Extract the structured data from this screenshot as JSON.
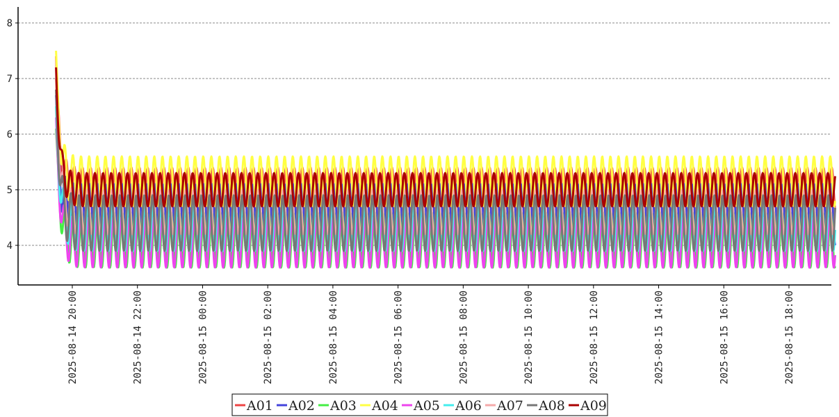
{
  "chart_data": {
    "type": "line",
    "title": "",
    "xlabel": "",
    "ylabel": "",
    "ylim": [
      3.3,
      8.3
    ],
    "yticks": [
      "4",
      "5",
      "6",
      "7",
      "8"
    ],
    "xticks": [
      {
        "t": 1.0,
        "label": "2025-08-14 20:00"
      },
      {
        "t": 3.0,
        "label": "2025-08-14 22:00"
      },
      {
        "t": 5.0,
        "label": "2025-08-15 00:00"
      },
      {
        "t": 7.0,
        "label": "2025-08-15 02:00"
      },
      {
        "t": 9.0,
        "label": "2025-08-15 04:00"
      },
      {
        "t": 11.0,
        "label": "2025-08-15 06:00"
      },
      {
        "t": 13.0,
        "label": "2025-08-15 08:00"
      },
      {
        "t": 15.0,
        "label": "2025-08-15 10:00"
      },
      {
        "t": 17.0,
        "label": "2025-08-15 12:00"
      },
      {
        "t": 19.0,
        "label": "2025-08-15 14:00"
      },
      {
        "t": 21.0,
        "label": "2025-08-15 16:00"
      },
      {
        "t": 23.0,
        "label": "2025-08-15 18:00"
      }
    ],
    "x_start": "2025-08-14 19:30",
    "x_end": "2025-08-15 19:25",
    "grid": "horizontal dashed",
    "legend_position": "bottom-center",
    "oscillation_period_minutes": 15,
    "series": [
      {
        "name": "A01",
        "color": "#ee4444",
        "start": 7.4,
        "low": 4.6,
        "high": 5.4
      },
      {
        "name": "A02",
        "color": "#4444dd",
        "start": 6.7,
        "low": 4.0,
        "high": 5.1
      },
      {
        "name": "A03",
        "color": "#44ee44",
        "start": 6.1,
        "low": 3.6,
        "high": 4.6
      },
      {
        "name": "A04",
        "color": "#ffff44",
        "start": 7.5,
        "low": 4.7,
        "high": 5.6
      },
      {
        "name": "A05",
        "color": "#ee44ee",
        "start": 6.3,
        "low": 3.6,
        "high": 4.5
      },
      {
        "name": "A06",
        "color": "#44eeee",
        "start": 6.5,
        "low": 3.9,
        "high": 4.8
      },
      {
        "name": "A07",
        "color": "#f5aaaa",
        "start": 7.0,
        "low": 4.2,
        "high": 5.0
      },
      {
        "name": "A08",
        "color": "#777777",
        "start": 6.8,
        "low": 3.9,
        "high": 4.9
      },
      {
        "name": "A09",
        "color": "#aa0000",
        "start": 7.2,
        "low": 4.7,
        "high": 5.3
      }
    ]
  }
}
